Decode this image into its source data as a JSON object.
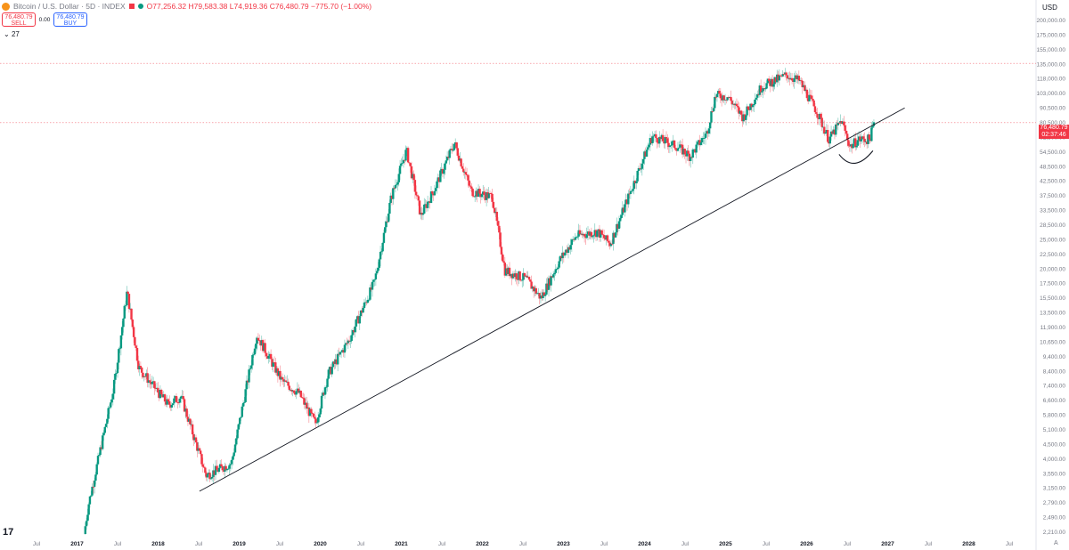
{
  "header": {
    "symbol": "Bitcoin / U.S. Dollar · 5D · INDEX",
    "open": "O77,256.32",
    "high": "H79,583.38",
    "low": "L74,919.36",
    "close": "C76,480.79",
    "change": "−775.70 (−1.00%)",
    "sell_price": "76,480.79",
    "sell_label": "SELL",
    "spread": "0.00",
    "buy_price": "76,480.79",
    "buy_label": "BUY",
    "indicator_toggle": "27",
    "currency": "USD",
    "logo": "17",
    "auto": "A"
  },
  "price_badge": {
    "price": "76,480.79",
    "countdown": "02:37:46"
  },
  "colors": {
    "up": "#089981",
    "down": "#f23645",
    "trendline": "#131722",
    "grid_h": "#f23645"
  },
  "chart_data": {
    "type": "candlestick",
    "scale": "log",
    "x_ticks": [
      "Jul",
      "2017",
      "Jul",
      "2018",
      "Jul",
      "2019",
      "Jul",
      "2020",
      "Jul",
      "2021",
      "Jul",
      "2022",
      "Jul",
      "2023",
      "Jul",
      "2024",
      "Jul",
      "2025",
      "Jul",
      "2026",
      "Jul",
      "2027",
      "Jul",
      "2028",
      "Jul"
    ],
    "y_ticks": [
      "200,000.00",
      "175,000.00",
      "155,000.00",
      "135,000.00",
      "118,000.00",
      "103,000.00",
      "90,500.00",
      "80,500.00",
      "62,500.00",
      "54,500.00",
      "48,500.00",
      "42,500.00",
      "37,500.00",
      "33,500.00",
      "28,500.00",
      "25,000.00",
      "22,500.00",
      "20,000.00",
      "17,500.00",
      "15,500.00",
      "13,500.00",
      "11,900.00",
      "10,650.00",
      "9,400.00",
      "8,400.00",
      "7,400.00",
      "6,600.00",
      "5,800.00",
      "5,100.00",
      "4,500.00",
      "4,000.00",
      "3,550.00",
      "3,150.00",
      "2,790.00",
      "2,490.00",
      "2,210.00"
    ],
    "ylim": [
      2100,
      210000
    ],
    "xlim": [
      2016.45,
      2028.75
    ],
    "price_anchors": [
      [
        2017.45,
        2100
      ],
      [
        2017.5,
        2700
      ],
      [
        2017.65,
        4500
      ],
      [
        2017.8,
        7500
      ],
      [
        2017.96,
        17500
      ],
      [
        2018.1,
        9000
      ],
      [
        2018.25,
        7800
      ],
      [
        2018.45,
        6500
      ],
      [
        2018.6,
        7000
      ],
      [
        2018.9,
        3500
      ],
      [
        2019.2,
        3900
      ],
      [
        2019.5,
        12000
      ],
      [
        2019.8,
        8000
      ],
      [
        2020.0,
        7200
      ],
      [
        2020.2,
        5500
      ],
      [
        2020.35,
        8500
      ],
      [
        2020.6,
        11500
      ],
      [
        2020.9,
        19000
      ],
      [
        2021.1,
        40000
      ],
      [
        2021.28,
        60000
      ],
      [
        2021.45,
        34000
      ],
      [
        2021.6,
        42000
      ],
      [
        2021.85,
        64000
      ],
      [
        2022.05,
        42000
      ],
      [
        2022.3,
        40000
      ],
      [
        2022.45,
        21000
      ],
      [
        2022.7,
        19500
      ],
      [
        2022.88,
        16500
      ],
      [
        2023.1,
        23000
      ],
      [
        2023.3,
        28500
      ],
      [
        2023.55,
        29500
      ],
      [
        2023.7,
        26500
      ],
      [
        2023.95,
        42500
      ],
      [
        2024.2,
        68000
      ],
      [
        2024.5,
        62000
      ],
      [
        2024.65,
        57000
      ],
      [
        2024.85,
        70000
      ],
      [
        2024.95,
        97000
      ],
      [
        2025.1,
        96000
      ],
      [
        2025.28,
        80000
      ],
      [
        2025.5,
        105000
      ],
      [
        2025.8,
        116000
      ],
      [
        2025.95,
        110000
      ],
      [
        2026.15,
        85000
      ],
      [
        2026.3,
        66000
      ],
      [
        2026.45,
        78000
      ],
      [
        2026.55,
        62000
      ],
      [
        2026.65,
        66000
      ],
      [
        2026.78,
        66000
      ],
      [
        2026.84,
        76500
      ]
    ],
    "trendline": {
      "from": [
        2018.82,
        3050
      ],
      "to": [
        2027.2,
        87000
      ]
    },
    "horizontal_lines": [
      128500,
      76480.79
    ],
    "annotation": "curved arc below price around 2026.6"
  }
}
